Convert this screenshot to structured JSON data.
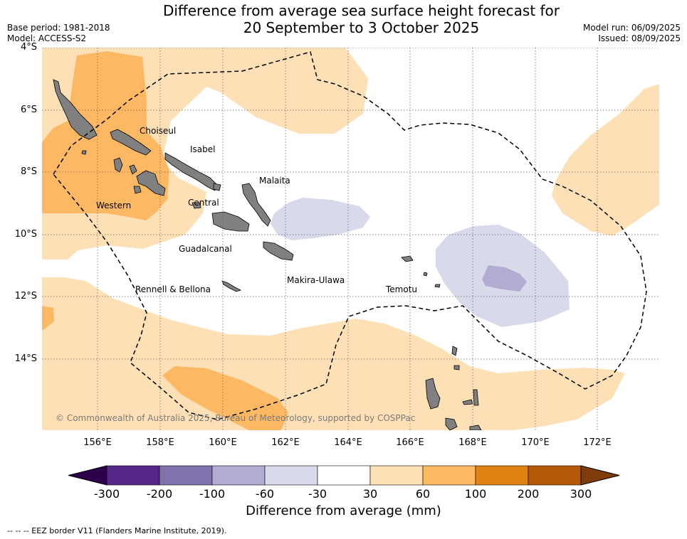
{
  "title_line1": "Difference from average sea surface height forecast for",
  "title_line2": "20 September to 3 October 2025",
  "base_period": "Base period: 1981-2018",
  "model": "Model: ACCESS-S2",
  "model_run": "Model run: 06/09/2025",
  "issued": "Issued: 08/09/2025",
  "latitude_labels": [
    "4°S",
    "6°S",
    "8°S",
    "10°S",
    "12°S",
    "14°S"
  ],
  "longitude_labels": [
    "156°E",
    "158°E",
    "160°E",
    "162°E",
    "164°E",
    "166°E",
    "168°E",
    "170°E",
    "172°E"
  ],
  "places": {
    "choiseul": "Choiseul",
    "isabel": "Isabel",
    "malaita": "Malaita",
    "western": "Western",
    "central": "Central",
    "guadalcanal": "Guadalcanal",
    "makira": "Makira-Ulawa",
    "rennell": "Rennell & Bellona",
    "temotu": "Temotu"
  },
  "copyright": "© Commonwealth of Australia 2025, Bureau of Meteorology, supported by COSPPac",
  "colorbar": {
    "label": "Difference from average (mm)",
    "ticks": [
      "-300",
      "-200",
      "-100",
      "-60",
      "-30",
      "30",
      "60",
      "100",
      "200",
      "300"
    ],
    "colors": [
      "#542788",
      "#8073ac",
      "#b2abd2",
      "#d8daeb",
      "#ffffff",
      "#fee0b6",
      "#fdb863",
      "#e08214",
      "#b35806"
    ],
    "under_color": "#2d004b",
    "over_color": "#7f3b08"
  },
  "footnote": "--  --  -- EEZ border V11 (Flanders Marine Institute, 2019).",
  "colors": {
    "land": "#808080",
    "eez_border": "#000000",
    "grid": "#666666"
  }
}
